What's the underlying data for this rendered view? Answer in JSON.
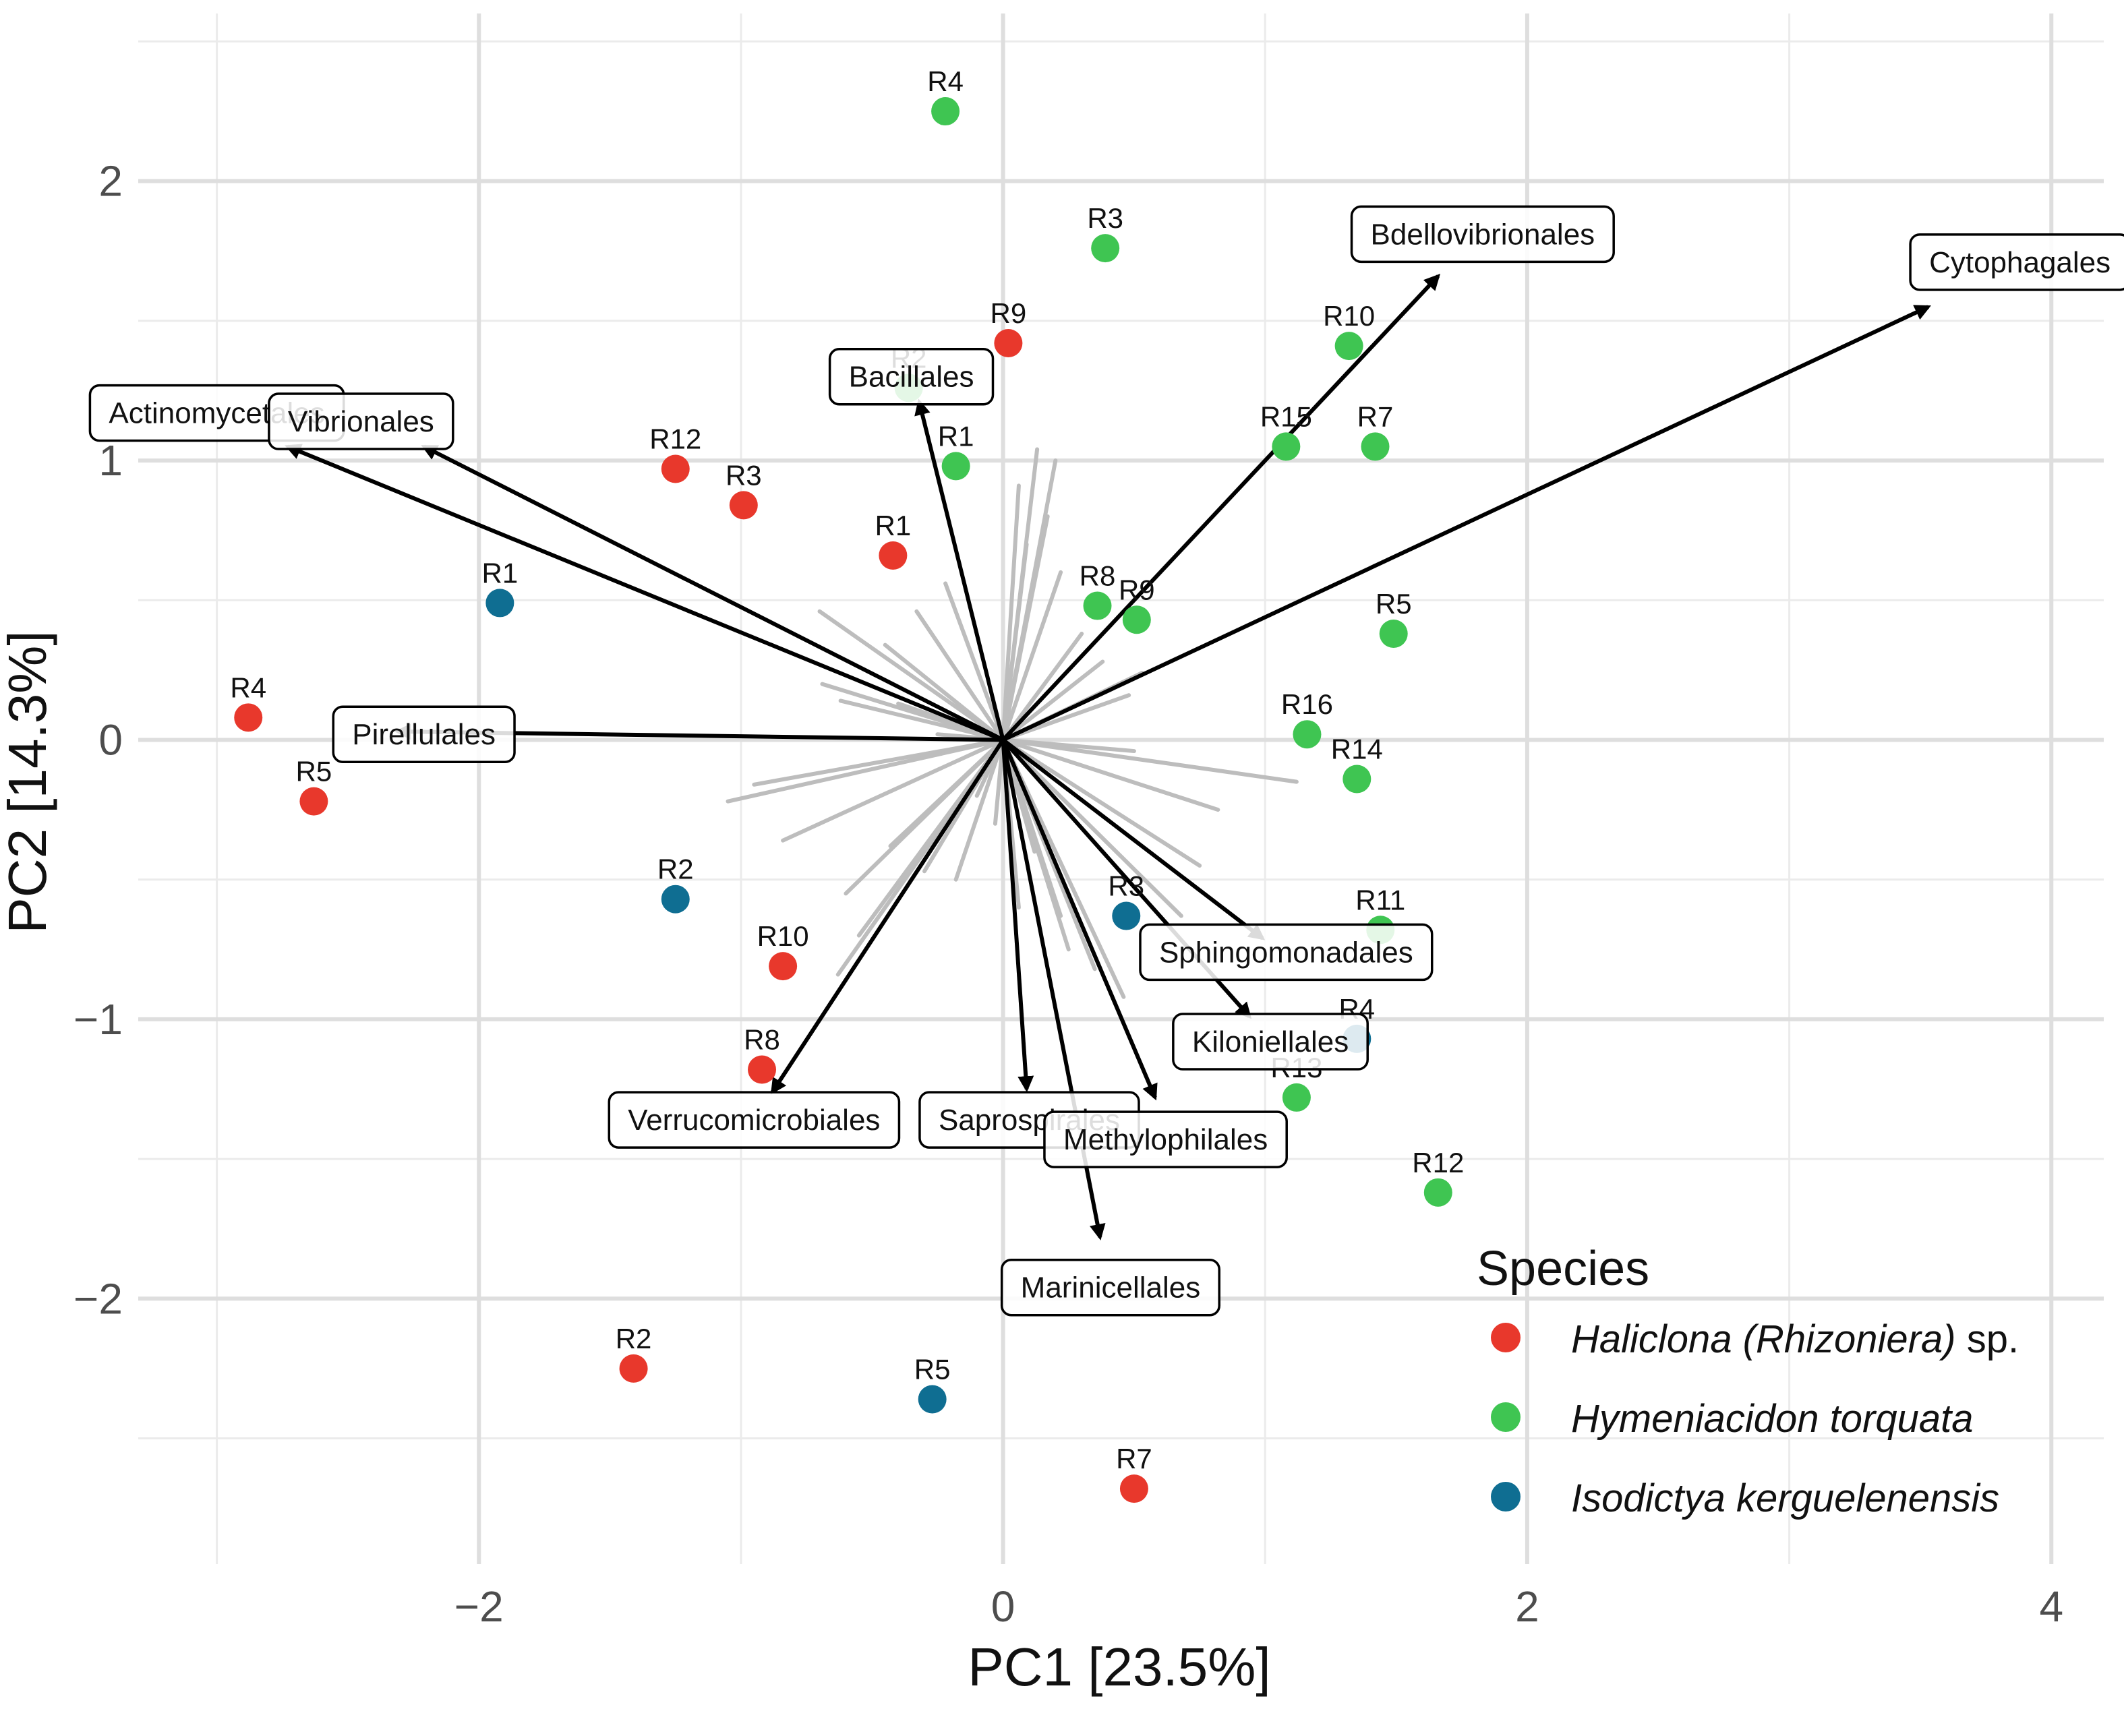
{
  "chart_data": {
    "type": "scatter",
    "subtype": "pca-biplot",
    "xlabel": "PC1 [23.5%]",
    "ylabel": "PC2 [14.3%]",
    "xlim": [
      -3.3,
      4.2
    ],
    "ylim": [
      -2.95,
      2.6
    ],
    "x_ticks": [
      -2,
      0,
      2,
      4
    ],
    "x_tick_labels": [
      "−2",
      "0",
      "2",
      "4"
    ],
    "y_ticks": [
      -2,
      -1,
      0,
      1,
      2
    ],
    "y_tick_labels": [
      "−2",
      "−1",
      "0",
      "1",
      "2"
    ],
    "grid": true,
    "legend": {
      "title": "Species",
      "position": "bottom-right",
      "entries": [
        {
          "species": "Haliclona (Rhizoniera)",
          "suffix": " sp.",
          "color": "#E8382C"
        },
        {
          "species": "Hymeniacidon torquata",
          "suffix": "",
          "color": "#3FC552"
        },
        {
          "species": "Isodictya kerguelenensis",
          "suffix": "",
          "color": "#0F6E92"
        }
      ]
    },
    "series": [
      {
        "name": "Haliclona (Rhizoniera) sp.",
        "color": "#E8382C",
        "points": [
          {
            "label": "R1",
            "x": -0.42,
            "y": 0.66
          },
          {
            "label": "R2",
            "x": -1.41,
            "y": -2.25
          },
          {
            "label": "R3",
            "x": -0.99,
            "y": 0.84
          },
          {
            "label": "R4",
            "x": -2.88,
            "y": 0.08
          },
          {
            "label": "R5",
            "x": -2.63,
            "y": -0.22
          },
          {
            "label": "R7",
            "x": 0.5,
            "y": -2.68
          },
          {
            "label": "R8",
            "x": -0.92,
            "y": -1.18
          },
          {
            "label": "R9",
            "x": 0.02,
            "y": 1.42
          },
          {
            "label": "R10",
            "x": -0.84,
            "y": -0.81
          },
          {
            "label": "R12",
            "x": -1.25,
            "y": 0.97
          }
        ]
      },
      {
        "name": "Hymeniacidon torquata",
        "color": "#3FC552",
        "points": [
          {
            "label": "R1",
            "x": -0.18,
            "y": 0.98
          },
          {
            "label": "R2",
            "x": -0.36,
            "y": 1.26
          },
          {
            "label": "R3",
            "x": 0.39,
            "y": 1.76
          },
          {
            "label": "R4",
            "x": -0.22,
            "y": 2.25
          },
          {
            "label": "R5",
            "x": 1.49,
            "y": 0.38
          },
          {
            "label": "R7",
            "x": 1.42,
            "y": 1.05
          },
          {
            "label": "R8",
            "x": 0.36,
            "y": 0.48
          },
          {
            "label": "R9",
            "x": 0.51,
            "y": 0.43
          },
          {
            "label": "R10",
            "x": 1.32,
            "y": 1.41
          },
          {
            "label": "R11",
            "x": 1.44,
            "y": -0.68
          },
          {
            "label": "R12",
            "x": 1.66,
            "y": -1.62
          },
          {
            "label": "R13",
            "x": 1.12,
            "y": -1.28
          },
          {
            "label": "R14",
            "x": 1.35,
            "y": -0.14
          },
          {
            "label": "R15",
            "x": 1.08,
            "y": 1.05
          },
          {
            "label": "R16",
            "x": 1.16,
            "y": 0.02
          }
        ]
      },
      {
        "name": "Isodictya kerguelenensis",
        "color": "#0F6E92",
        "points": [
          {
            "label": "R1",
            "x": -1.92,
            "y": 0.49
          },
          {
            "label": "R2",
            "x": -1.25,
            "y": -0.57
          },
          {
            "label": "R3",
            "x": 0.47,
            "y": -0.63
          },
          {
            "label": "R4",
            "x": 1.35,
            "y": -1.07
          },
          {
            "label": "R5",
            "x": -0.27,
            "y": -2.36
          }
        ]
      }
    ],
    "loadings": [
      {
        "name": "Cytophagales",
        "x": 3.53,
        "y": 1.55,
        "lx": 3.88,
        "ly": 1.71
      },
      {
        "name": "Bdellovibrionales",
        "x": 1.66,
        "y": 1.66,
        "lx": 1.83,
        "ly": 1.81
      },
      {
        "name": "Actinomycetales",
        "x": -2.73,
        "y": 1.05,
        "lx": -3.0,
        "ly": 1.17
      },
      {
        "name": "Vibrionales",
        "x": -2.21,
        "y": 1.05,
        "lx": -2.45,
        "ly": 1.14
      },
      {
        "name": "Bacillales",
        "x": -0.32,
        "y": 1.21,
        "lx": -0.35,
        "ly": 1.3
      },
      {
        "name": "Pirellulales",
        "x": -2.31,
        "y": 0.03,
        "lx": -2.21,
        "ly": 0.02
      },
      {
        "name": "Verrucomicrobiales",
        "x": -0.88,
        "y": -1.26,
        "lx": -0.95,
        "ly": -1.36
      },
      {
        "name": "Saprospirales",
        "x": 0.09,
        "y": -1.25,
        "lx": 0.1,
        "ly": -1.36
      },
      {
        "name": "Methylophilales",
        "x": 0.58,
        "y": -1.28,
        "lx": 0.62,
        "ly": -1.43
      },
      {
        "name": "Marinicellales",
        "x": 0.37,
        "y": -1.78,
        "lx": 0.41,
        "ly": -1.96
      },
      {
        "name": "Sphingomonadales",
        "x": 0.99,
        "y": -0.71,
        "lx": 1.08,
        "ly": -0.76
      },
      {
        "name": "Kiloniellales",
        "x": 0.94,
        "y": -0.99,
        "lx": 1.02,
        "ly": -1.08
      }
    ],
    "minor_loadings": [
      [
        0.13,
        1.04
      ],
      [
        0.2,
        1.0
      ],
      [
        0.06,
        0.91
      ],
      [
        0.17,
        0.8
      ],
      [
        0.09,
        0.7
      ],
      [
        0.22,
        0.6
      ],
      [
        -0.22,
        0.56
      ],
      [
        -0.33,
        0.46
      ],
      [
        -0.45,
        0.34
      ],
      [
        -0.7,
        0.46
      ],
      [
        -0.69,
        0.2
      ],
      [
        -0.62,
        0.14
      ],
      [
        -0.4,
        0.13
      ],
      [
        0.3,
        0.38
      ],
      [
        0.38,
        0.28
      ],
      [
        0.48,
        0.16
      ],
      [
        0.53,
        0.24
      ],
      [
        -0.25,
        0.02
      ],
      [
        0.5,
        -0.04
      ],
      [
        1.12,
        -0.15
      ],
      [
        0.82,
        -0.25
      ],
      [
        -1.05,
        -0.22
      ],
      [
        -0.95,
        -0.16
      ],
      [
        -0.84,
        -0.36
      ],
      [
        -0.6,
        -0.55
      ],
      [
        -0.63,
        -0.84
      ],
      [
        -0.55,
        -0.7
      ],
      [
        -0.43,
        -0.38
      ],
      [
        -0.3,
        -0.47
      ],
      [
        0.22,
        -0.63
      ],
      [
        0.35,
        -0.82
      ],
      [
        0.46,
        -0.92
      ],
      [
        0.25,
        -0.75
      ],
      [
        0.06,
        -0.6
      ],
      [
        -0.03,
        -0.3
      ],
      [
        0.12,
        -0.4
      ],
      [
        0.68,
        -0.63
      ],
      [
        0.75,
        -0.45
      ],
      [
        -0.18,
        -0.5
      ],
      [
        -0.1,
        -0.2
      ]
    ]
  }
}
